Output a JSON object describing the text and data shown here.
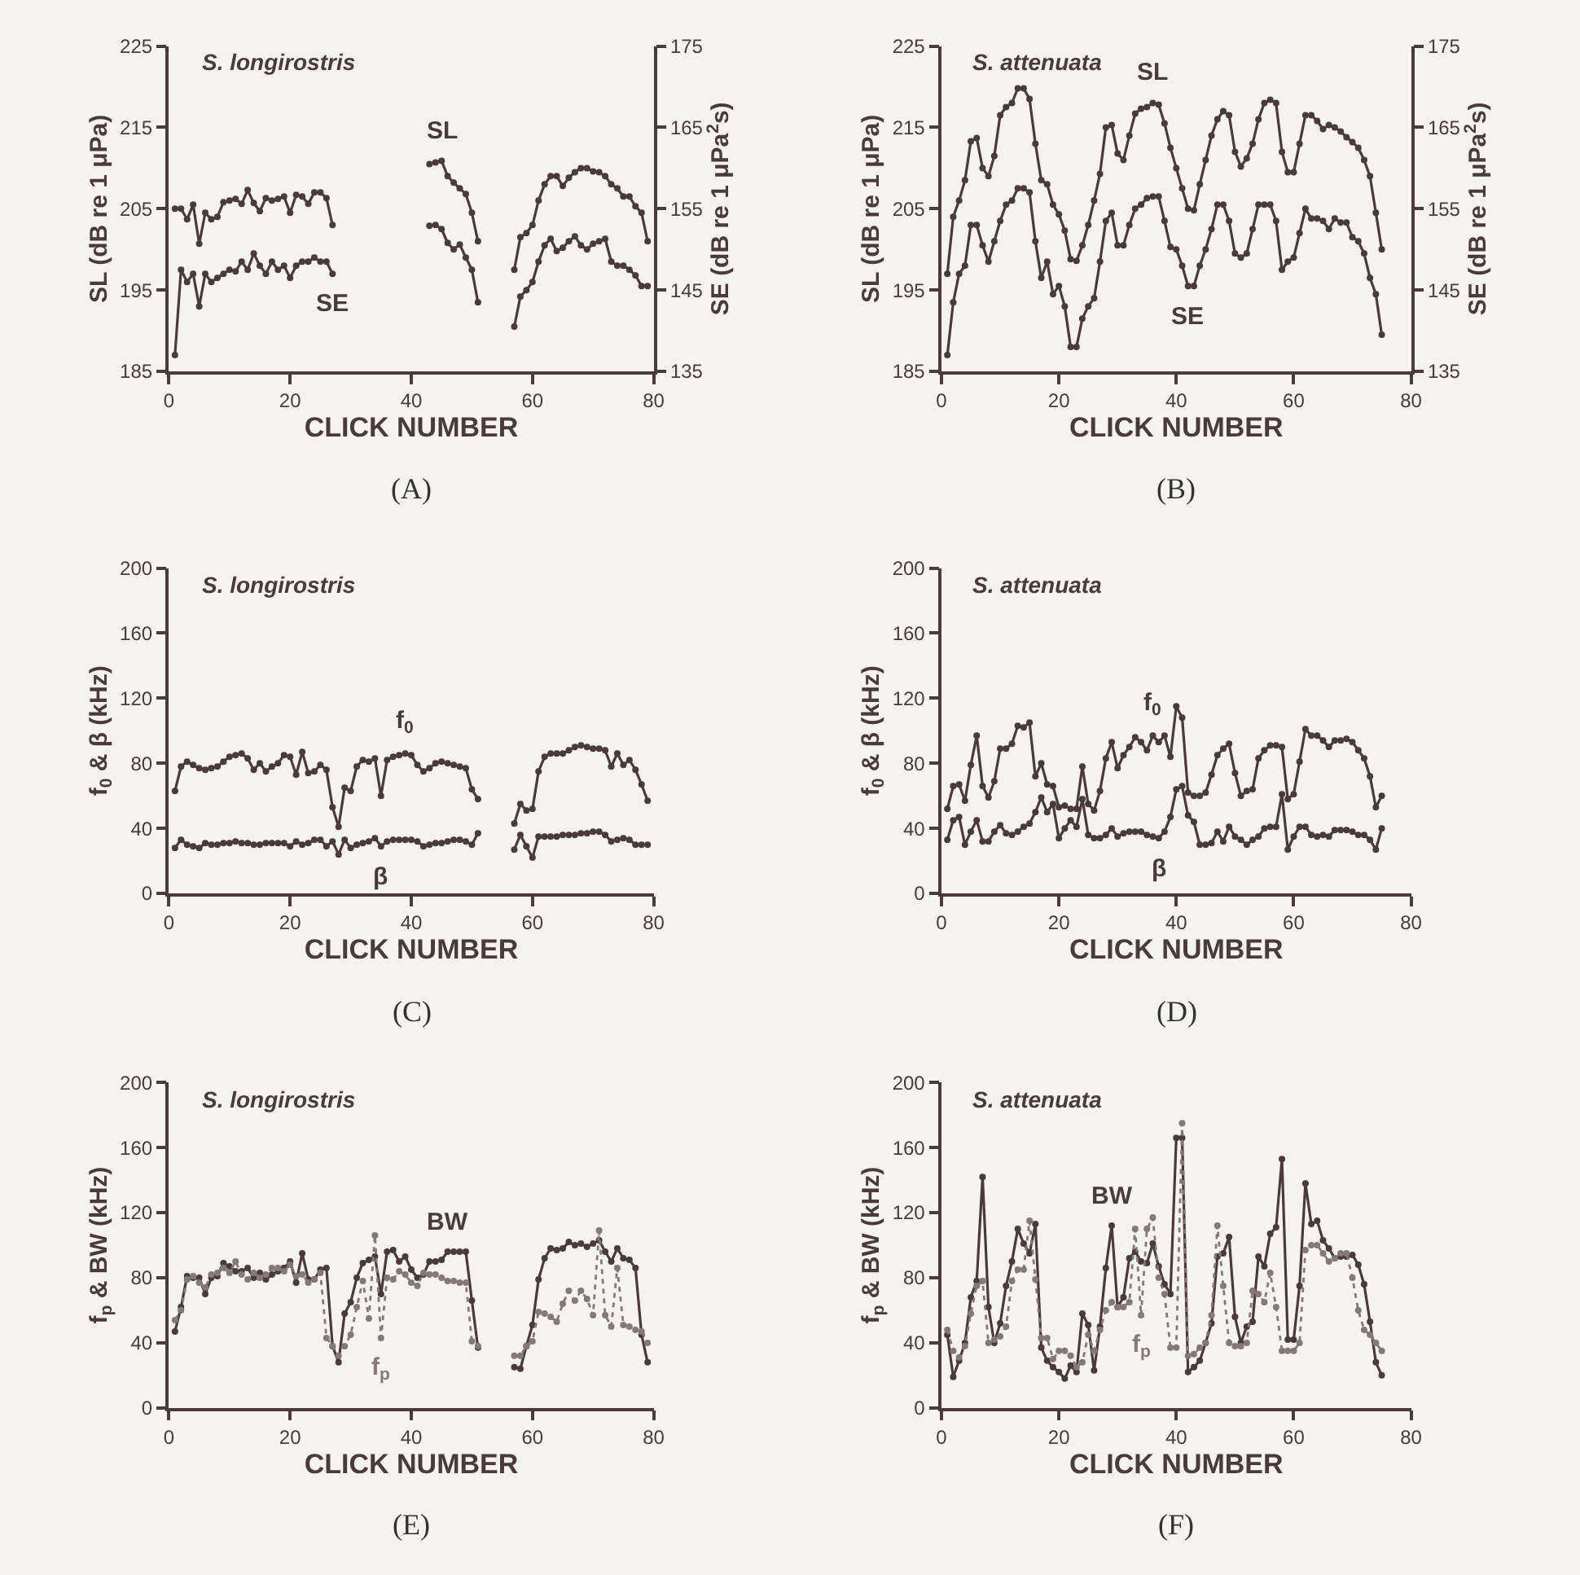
{
  "chart_data": [
    {
      "type": "line",
      "title": "S. longirostris",
      "xlabel": "CLICK NUMBER",
      "ylabel": "SL (dB re 1 μPa)",
      "y2label": "SE (dB re 1 μPa$^{2}$s)",
      "annotations": [
        "(A)"
      ],
      "marker": "circle",
      "x": [
        1,
        2,
        3,
        4,
        5,
        6,
        7,
        8,
        9,
        10,
        11,
        12,
        13,
        14,
        15,
        16,
        17,
        18,
        19,
        20,
        21,
        22,
        23,
        24,
        25,
        26,
        27,
        35,
        43,
        44,
        45,
        46,
        47,
        48,
        49,
        50,
        51,
        54,
        57,
        58,
        59,
        60,
        61,
        62,
        63,
        64,
        65,
        66,
        67,
        68,
        69,
        70,
        71,
        72,
        73,
        74,
        75,
        76,
        77,
        78,
        79
      ],
      "xlim": [
        0,
        80
      ],
      "xticks": [
        0,
        20,
        40,
        60,
        80
      ],
      "ylim": [
        185,
        225
      ],
      "yticks": [
        185,
        195,
        205,
        215,
        225
      ],
      "y2lim": [
        135,
        175
      ],
      "y2ticks": [
        135,
        145,
        155,
        165,
        175
      ],
      "series": [
        {
          "name": "SL",
          "color": "#4a3a3c",
          "values": [
            205,
            205,
            203.7,
            205.5,
            200.7,
            204.5,
            203.7,
            204,
            205.8,
            206,
            206.2,
            205.6,
            207.3,
            205.7,
            204.7,
            206.3,
            206,
            206.2,
            206.5,
            204.5,
            206.7,
            206.5,
            205.6,
            207,
            207,
            206.3,
            203,
            null,
            210.5,
            210.7,
            210.9,
            209,
            208.2,
            207.5,
            206.8,
            204.5,
            201,
            null,
            197.5,
            201.5,
            202,
            203,
            206,
            208,
            209,
            209,
            207.8,
            208.8,
            209.5,
            210,
            210,
            209.6,
            209.5,
            209,
            208,
            207.5,
            206.5,
            206.5,
            205.3,
            204.5,
            201
          ]
        },
        {
          "name": "SE",
          "color": "#4a3a3c",
          "axis": "y2",
          "values": [
            137,
            147.5,
            146,
            147,
            143,
            147,
            146,
            146.5,
            147,
            147.5,
            147.3,
            148.5,
            147.5,
            149.5,
            148,
            147,
            148.5,
            147.5,
            148,
            146.5,
            148,
            148.5,
            148.5,
            149,
            148.5,
            148.5,
            147,
            null,
            152.9,
            153,
            152.5,
            150.8,
            150,
            150.6,
            149,
            147.5,
            143.5,
            null,
            140.5,
            144.2,
            145,
            146,
            148.5,
            150.5,
            151.3,
            149.8,
            150.2,
            151,
            151.6,
            150.5,
            150,
            150.7,
            151,
            151.3,
            148.5,
            148,
            148,
            147.5,
            146.8,
            145.5,
            145.5
          ]
        }
      ]
    },
    {
      "type": "line",
      "title": "S. attenuata",
      "xlabel": "CLICK NUMBER",
      "ylabel": "SL (dB re 1 μPa)",
      "y2label": "SE (dB re 1 μPa$^{2}$s)",
      "annotations": [
        "(B)"
      ],
      "marker": "circle",
      "x": [
        1,
        2,
        3,
        4,
        5,
        6,
        7,
        8,
        9,
        10,
        11,
        12,
        13,
        14,
        15,
        16,
        17,
        18,
        19,
        20,
        21,
        22,
        23,
        24,
        25,
        26,
        27,
        28,
        29,
        30,
        31,
        32,
        33,
        34,
        35,
        36,
        37,
        38,
        39,
        40,
        41,
        42,
        43,
        44,
        45,
        46,
        47,
        48,
        49,
        50,
        51,
        52,
        53,
        54,
        55,
        56,
        57,
        58,
        59,
        60,
        61,
        62,
        63,
        64,
        65,
        66,
        67,
        68,
        69,
        70,
        71,
        72,
        73,
        74,
        75
      ],
      "xlim": [
        0,
        80
      ],
      "xticks": [
        0,
        20,
        40,
        60,
        80
      ],
      "ylim": [
        185,
        225
      ],
      "yticks": [
        185,
        195,
        205,
        215,
        225
      ],
      "y2lim": [
        135,
        175
      ],
      "y2ticks": [
        135,
        145,
        155,
        165,
        175
      ],
      "series": [
        {
          "name": "SL",
          "color": "#4a3a3c",
          "values": [
            197,
            204,
            206,
            208.5,
            213.3,
            213.7,
            210,
            209,
            211.5,
            216.5,
            217.5,
            218,
            219.8,
            219.8,
            218.5,
            213,
            208.5,
            208,
            205.5,
            204.3,
            202.3,
            198.8,
            198.6,
            200.5,
            203,
            206,
            209.3,
            215,
            215.3,
            211.8,
            211,
            214,
            216.7,
            217.3,
            217.5,
            218,
            217.8,
            215.5,
            212.5,
            210,
            207.5,
            205,
            204.8,
            208,
            211,
            214,
            216,
            217,
            216.5,
            212,
            210.2,
            211.2,
            213,
            216,
            218,
            218.4,
            218,
            212,
            209.5,
            209.5,
            213,
            216.5,
            216.5,
            215.8,
            214.8,
            215.3,
            215,
            214.5,
            213.8,
            213.2,
            212.5,
            211,
            209,
            204.5,
            200
          ]
        },
        {
          "name": "SE",
          "color": "#4a3a3c",
          "axis": "y2",
          "values": [
            137,
            143.5,
            147,
            148,
            153,
            153,
            150.5,
            148.5,
            151,
            153.5,
            155.5,
            156,
            157.5,
            157.5,
            157,
            151,
            146.5,
            148.5,
            144.5,
            145.5,
            143,
            138,
            138,
            141.5,
            143,
            144,
            148.5,
            153.5,
            154.5,
            150.5,
            150.5,
            153,
            155,
            155.5,
            156.3,
            156.5,
            156.5,
            153.5,
            150.3,
            150,
            148,
            145.5,
            145.5,
            148,
            150,
            152.5,
            155.5,
            155.5,
            153.5,
            149.5,
            149,
            149.5,
            152.5,
            155.5,
            155.5,
            155.5,
            153.5,
            147.5,
            148.5,
            149,
            152,
            155,
            153.8,
            153.8,
            153.5,
            152.5,
            153.8,
            153.3,
            153.3,
            151.5,
            151,
            149.5,
            146.5,
            144.5,
            139.5
          ]
        }
      ]
    },
    {
      "type": "line",
      "title": "S. longirostris",
      "xlabel": "CLICK NUMBER",
      "ylabel": "f$_{0}$ & β (kHz)",
      "annotations": [
        "(C)"
      ],
      "marker": "circle",
      "x": [
        1,
        2,
        3,
        4,
        5,
        6,
        7,
        8,
        9,
        10,
        11,
        12,
        13,
        14,
        15,
        16,
        17,
        18,
        19,
        20,
        21,
        22,
        23,
        24,
        25,
        26,
        27,
        28,
        29,
        30,
        31,
        32,
        33,
        34,
        35,
        36,
        37,
        38,
        39,
        40,
        41,
        42,
        43,
        44,
        45,
        46,
        47,
        48,
        49,
        50,
        51,
        54,
        57,
        58,
        59,
        60,
        61,
        62,
        63,
        64,
        65,
        66,
        67,
        68,
        69,
        70,
        71,
        72,
        73,
        74,
        75,
        76,
        77,
        78,
        79
      ],
      "xlim": [
        0,
        80
      ],
      "xticks": [
        0,
        20,
        40,
        60,
        80
      ],
      "ylim": [
        0,
        200
      ],
      "yticks": [
        0,
        40,
        80,
        120,
        160,
        200
      ],
      "series": [
        {
          "name": "f$_{0}$",
          "color": "#4a3a3c",
          "values": [
            63,
            78,
            81,
            79,
            77,
            76,
            77,
            78,
            81,
            84,
            85,
            86,
            83,
            76,
            80,
            75,
            78,
            80,
            85,
            84,
            73,
            87,
            74,
            75,
            79,
            76,
            53,
            41,
            65,
            63,
            78,
            82,
            81,
            83,
            60,
            82,
            84,
            85,
            86,
            85,
            79,
            75,
            77,
            80,
            81,
            80,
            79,
            78,
            77,
            64,
            58,
            null,
            43,
            55,
            51,
            52,
            75,
            84,
            86,
            86,
            86,
            88,
            90,
            91,
            90,
            89,
            89,
            88,
            78,
            86,
            79,
            82,
            76,
            67,
            57
          ]
        },
        {
          "name": "β",
          "color": "#4a3a3c",
          "values": [
            28,
            33,
            30,
            29,
            28,
            31,
            30,
            30,
            31,
            31,
            32,
            31,
            31,
            30,
            30,
            31,
            31,
            31,
            31,
            29,
            32,
            30,
            31,
            33,
            33,
            29,
            32,
            24,
            33,
            28,
            30,
            31,
            32,
            34,
            29,
            32,
            33,
            33,
            33,
            33,
            32,
            29,
            30,
            31,
            31,
            32,
            33,
            33,
            32,
            30,
            37,
            null,
            27,
            36,
            29,
            22,
            35,
            35,
            35,
            35,
            36,
            36,
            36,
            37,
            37,
            38,
            38,
            36,
            32,
            33,
            34,
            33,
            30,
            30,
            30
          ]
        }
      ]
    },
    {
      "type": "line",
      "title": "S. attenuata",
      "xlabel": "CLICK NUMBER",
      "ylabel": "f$_{0}$ & β (kHz)",
      "annotations": [
        "(D)"
      ],
      "marker": "circle",
      "x": [
        1,
        2,
        3,
        4,
        5,
        6,
        7,
        8,
        9,
        10,
        11,
        12,
        13,
        14,
        15,
        16,
        17,
        18,
        19,
        20,
        21,
        22,
        23,
        24,
        25,
        26,
        27,
        28,
        29,
        30,
        31,
        32,
        33,
        34,
        35,
        36,
        37,
        38,
        39,
        40,
        41,
        42,
        43,
        44,
        45,
        46,
        47,
        48,
        49,
        50,
        51,
        52,
        53,
        54,
        55,
        56,
        57,
        58,
        59,
        60,
        61,
        62,
        63,
        64,
        65,
        66,
        67,
        68,
        69,
        70,
        71,
        72,
        73,
        74,
        75
      ],
      "xlim": [
        0,
        80
      ],
      "xticks": [
        0,
        20,
        40,
        60,
        80
      ],
      "ylim": [
        0,
        200
      ],
      "yticks": [
        0,
        40,
        80,
        120,
        160,
        200
      ],
      "series": [
        {
          "name": "f$_{0}$",
          "color": "#4a3a3c",
          "values": [
            52,
            66,
            67,
            57,
            79,
            97,
            66,
            59,
            69,
            89,
            89,
            92,
            103,
            102,
            105,
            72,
            80,
            67,
            66,
            53,
            54,
            52,
            52,
            78,
            55,
            51,
            63,
            83,
            93,
            77,
            85,
            90,
            96,
            93,
            88,
            97,
            93,
            97,
            84,
            115,
            108,
            62,
            60,
            60,
            62,
            73,
            85,
            89,
            92,
            74,
            60,
            63,
            64,
            83,
            88,
            91,
            91,
            90,
            58,
            61,
            81,
            101,
            97,
            97,
            94,
            90,
            94,
            94,
            95,
            93,
            88,
            83,
            72,
            53,
            60
          ]
        },
        {
          "name": "β",
          "color": "#4a3a3c",
          "values": [
            33,
            45,
            47,
            30,
            38,
            45,
            32,
            32,
            38,
            42,
            37,
            36,
            38,
            41,
            43,
            50,
            59,
            50,
            55,
            34,
            40,
            45,
            41,
            58,
            36,
            34,
            34,
            36,
            40,
            35,
            37,
            38,
            38,
            38,
            36,
            35,
            34,
            38,
            47,
            64,
            66,
            48,
            44,
            30,
            30,
            31,
            38,
            32,
            41,
            35,
            33,
            30,
            33,
            35,
            40,
            41,
            41,
            61,
            27,
            35,
            41,
            41,
            36,
            35,
            36,
            35,
            39,
            39,
            39,
            38,
            36,
            36,
            33,
            27,
            40
          ]
        }
      ]
    },
    {
      "type": "line",
      "title": "S. longirostris",
      "xlabel": "CLICK NUMBER",
      "ylabel": "f$_{p}$ & BW (kHz)",
      "annotations": [
        "(E)"
      ],
      "marker": "circle",
      "x": [
        1,
        2,
        3,
        4,
        5,
        6,
        7,
        8,
        9,
        10,
        11,
        12,
        13,
        14,
        15,
        16,
        17,
        18,
        19,
        20,
        21,
        22,
        23,
        24,
        25,
        26,
        27,
        28,
        29,
        30,
        31,
        32,
        33,
        34,
        35,
        36,
        37,
        38,
        39,
        40,
        41,
        42,
        43,
        44,
        45,
        46,
        47,
        48,
        49,
        50,
        51,
        54,
        57,
        58,
        59,
        60,
        61,
        62,
        63,
        64,
        65,
        66,
        67,
        68,
        69,
        70,
        71,
        72,
        73,
        74,
        75,
        76,
        77,
        78,
        79
      ],
      "xlim": [
        0,
        80
      ],
      "xticks": [
        0,
        20,
        40,
        60,
        80
      ],
      "ylim": [
        0,
        200
      ],
      "yticks": [
        0,
        40,
        80,
        120,
        160,
        200
      ],
      "series": [
        {
          "name": "BW",
          "color": "#4a3a3c",
          "line_style": "solid",
          "values": [
            47,
            62,
            81,
            80,
            80,
            70,
            80,
            81,
            89,
            87,
            84,
            84,
            86,
            80,
            83,
            79,
            82,
            84,
            86,
            90,
            77,
            95,
            79,
            79,
            85,
            86,
            38,
            28,
            58,
            65,
            80,
            89,
            91,
            93,
            70,
            96,
            97,
            90,
            93,
            85,
            80,
            82,
            90,
            90,
            91,
            96,
            96,
            96,
            96,
            66,
            37,
            null,
            25,
            24,
            38,
            51,
            79,
            92,
            98,
            97,
            98,
            102,
            100,
            101,
            99,
            101,
            103,
            96,
            90,
            98,
            92,
            91,
            86,
            45,
            28
          ]
        },
        {
          "name": "f$_{p}$",
          "color": "#85787a",
          "line_style": "dotted",
          "values": [
            54,
            60,
            79,
            81,
            77,
            74,
            82,
            83,
            86,
            83,
            90,
            82,
            79,
            83,
            80,
            82,
            86,
            86,
            84,
            88,
            81,
            82,
            77,
            79,
            83,
            43,
            38,
            32,
            38,
            45,
            62,
            78,
            55,
            106,
            43,
            80,
            79,
            84,
            82,
            77,
            75,
            83,
            82,
            82,
            80,
            78,
            78,
            77,
            77,
            41,
            38,
            null,
            32,
            32,
            38,
            41,
            59,
            58,
            56,
            53,
            64,
            72,
            66,
            72,
            67,
            57,
            109,
            57,
            50,
            86,
            51,
            50,
            48,
            47,
            40
          ]
        }
      ]
    },
    {
      "type": "line",
      "title": "S. attenuata",
      "xlabel": "CLICK NUMBER",
      "ylabel": "f$_{p}$ & BW (kHz)",
      "annotations": [
        "(F)"
      ],
      "marker": "circle",
      "x": [
        1,
        2,
        3,
        4,
        5,
        6,
        7,
        8,
        9,
        10,
        11,
        12,
        13,
        14,
        15,
        16,
        17,
        18,
        19,
        20,
        21,
        22,
        23,
        24,
        25,
        26,
        27,
        28,
        29,
        30,
        31,
        32,
        33,
        34,
        35,
        36,
        37,
        38,
        39,
        40,
        41,
        42,
        43,
        44,
        45,
        46,
        47,
        48,
        49,
        50,
        51,
        52,
        53,
        54,
        55,
        56,
        57,
        58,
        59,
        60,
        61,
        62,
        63,
        64,
        65,
        66,
        67,
        68,
        69,
        70,
        71,
        72,
        73,
        74,
        75
      ],
      "xlim": [
        0,
        80
      ],
      "xticks": [
        0,
        20,
        40,
        60,
        80
      ],
      "ylim": [
        0,
        200
      ],
      "yticks": [
        0,
        40,
        80,
        120,
        160,
        200
      ],
      "series": [
        {
          "name": "BW",
          "color": "#4a3a3c",
          "line_style": "solid",
          "values": [
            45,
            19,
            29,
            40,
            68,
            78,
            142,
            62,
            40,
            52,
            75,
            90,
            110,
            101,
            95,
            113,
            37,
            29,
            25,
            22,
            18,
            26,
            22,
            58,
            51,
            23,
            50,
            86,
            112,
            62,
            68,
            92,
            96,
            90,
            89,
            101,
            87,
            76,
            70,
            166,
            166,
            22,
            25,
            29,
            40,
            52,
            93,
            95,
            105,
            56,
            40,
            50,
            53,
            93,
            87,
            107,
            111,
            153,
            42,
            42,
            75,
            138,
            113,
            115,
            103,
            98,
            92,
            93,
            93,
            94,
            88,
            76,
            53,
            28,
            20
          ]
        },
        {
          "name": "f$_{p}$",
          "color": "#85787a",
          "line_style": "dotted",
          "values": [
            48,
            35,
            31,
            38,
            58,
            75,
            78,
            40,
            42,
            44,
            50,
            78,
            85,
            85,
            115,
            79,
            43,
            43,
            30,
            35,
            35,
            32,
            25,
            28,
            45,
            35,
            48,
            60,
            65,
            62,
            62,
            65,
            110,
            57,
            110,
            117,
            80,
            70,
            37,
            37,
            175,
            32,
            33,
            37,
            40,
            57,
            112,
            75,
            40,
            38,
            38,
            40,
            72,
            70,
            65,
            83,
            62,
            35,
            35,
            35,
            40,
            97,
            100,
            100,
            95,
            90,
            92,
            95,
            95,
            80,
            60,
            48,
            45,
            40,
            35
          ]
        }
      ]
    }
  ]
}
